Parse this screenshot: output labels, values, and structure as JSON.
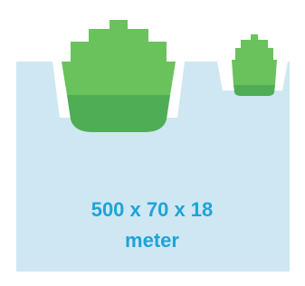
{
  "label": {
    "line1": "500 x 70 x 18",
    "line2": "meter"
  }
}
